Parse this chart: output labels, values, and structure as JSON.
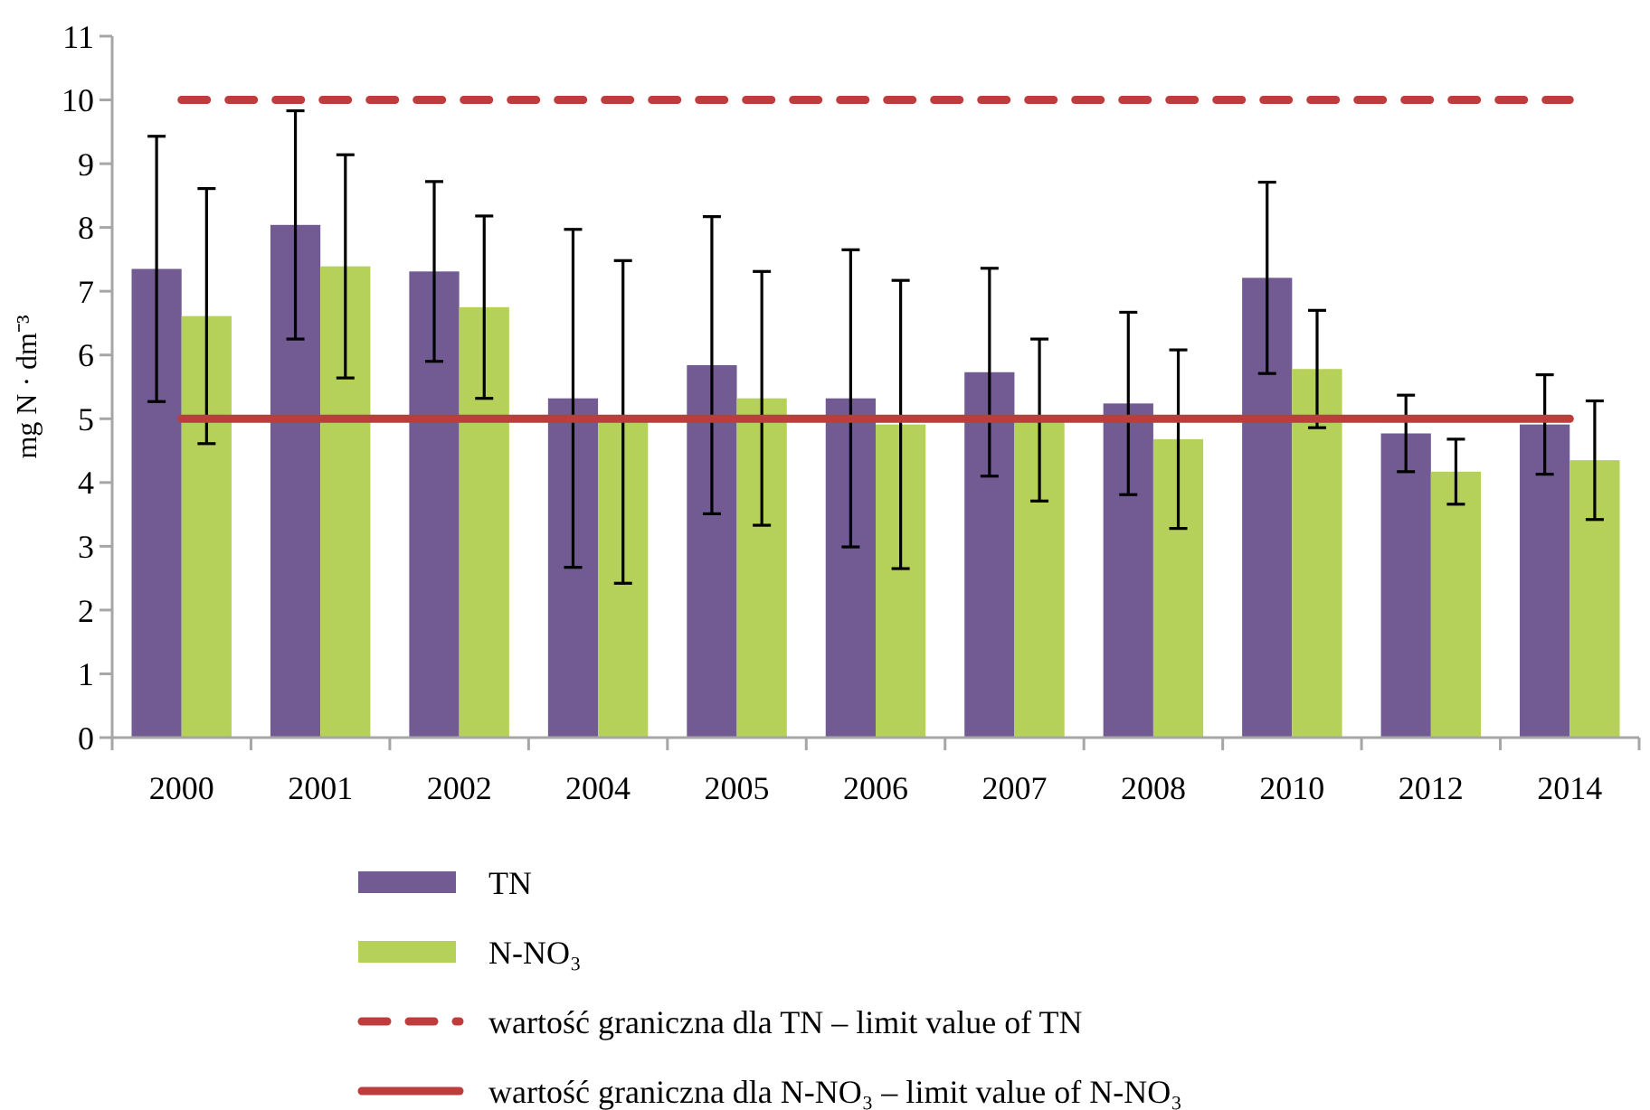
{
  "chart_data": {
    "type": "bar",
    "ylabel": "mg N · dm⁻³",
    "categories": [
      "2000",
      "2001",
      "2002",
      "2004",
      "2005",
      "2006",
      "2007",
      "2008",
      "2010",
      "2012",
      "2014"
    ],
    "series": [
      {
        "name": "TN",
        "color": "#725b93",
        "values": [
          7.35,
          8.04,
          7.31,
          5.32,
          5.84,
          5.32,
          5.73,
          5.24,
          7.21,
          4.77,
          4.91
        ],
        "errors": [
          2.08,
          1.79,
          1.41,
          2.65,
          2.33,
          2.33,
          1.63,
          1.43,
          1.5,
          0.6,
          0.78
        ]
      },
      {
        "name": "N-NO₃",
        "color": "#b6d15a",
        "values": [
          6.61,
          7.39,
          6.75,
          4.95,
          5.32,
          4.91,
          4.98,
          4.68,
          5.78,
          4.17,
          4.35
        ],
        "errors": [
          2.0,
          1.75,
          1.43,
          2.53,
          1.99,
          2.26,
          1.27,
          1.4,
          0.92,
          0.51,
          0.93
        ]
      }
    ],
    "ylim": [
      0,
      11
    ],
    "yticks": [
      0,
      1,
      2,
      3,
      4,
      5,
      6,
      7,
      8,
      9,
      10,
      11
    ],
    "ref_lines": [
      {
        "axis": "y",
        "value": 10,
        "label": "wartość graniczna dla TN – limit value of TN",
        "color": "#be3c3c",
        "line_style": "dashed"
      },
      {
        "axis": "y",
        "value": 5,
        "label": "wartość graniczna dla N-NO₃ – limit value of N-NO₃",
        "color": "#be3c3c",
        "line_style": "solid"
      }
    ],
    "legend": "bottom",
    "grid": false
  }
}
